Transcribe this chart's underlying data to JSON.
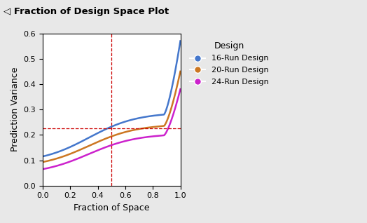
{
  "title": "Fraction of Design Space Plot",
  "xlabel": "Fraction of Space",
  "ylabel": "Prediction Variance",
  "xlim": [
    0.0,
    1.0
  ],
  "ylim": [
    0.0,
    0.6
  ],
  "xticks": [
    0.0,
    0.2,
    0.4,
    0.6,
    0.8,
    1.0
  ],
  "yticks": [
    0.0,
    0.1,
    0.2,
    0.3,
    0.4,
    0.5,
    0.6
  ],
  "vline_x": 0.5,
  "hline_y": 0.225,
  "crosshair_color": "#cc0000",
  "legend_title": "Design",
  "legend_entries": [
    "16-Run Design",
    "20-Run Design",
    "24-Run Design"
  ],
  "colors": [
    "#4477cc",
    "#cc7722",
    "#cc22cc"
  ],
  "bg_color": "#e8e8e8",
  "plot_bg": "#ffffff",
  "curve_params": [
    {
      "y_start": 0.115,
      "y_at_05": 0.218,
      "y_at_088": 0.28,
      "y_end": 0.57
    },
    {
      "y_start": 0.093,
      "y_at_05": 0.185,
      "y_at_088": 0.235,
      "y_end": 0.45
    },
    {
      "y_start": 0.065,
      "y_at_05": 0.155,
      "y_at_088": 0.198,
      "y_end": 0.38
    }
  ]
}
